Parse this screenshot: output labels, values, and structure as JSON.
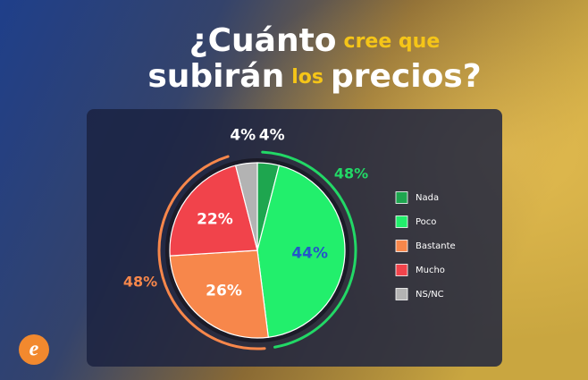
{
  "chart_data": {
    "type": "pie",
    "title_lines": [
      [
        {
          "text": "¿Cuánto",
          "highlight": false
        },
        {
          "text": "cree que",
          "highlight": true
        }
      ],
      [
        {
          "text": "subirán",
          "highlight": false
        },
        {
          "text": "los",
          "highlight": true
        },
        {
          "text": "precios?",
          "highlight": false
        }
      ]
    ],
    "categories": [
      "Nada",
      "Poco",
      "Bastante",
      "Mucho",
      "NS/NC"
    ],
    "values": [
      4,
      44,
      26,
      22,
      4
    ],
    "value_labels": [
      "4%",
      "44%",
      "26%",
      "22%",
      "4%"
    ],
    "colors": [
      "#1ea64f",
      "#22ef6c",
      "#f7874b",
      "#f1434b",
      "#b3b3b3"
    ],
    "label_colors": [
      "#ffffff",
      "#2456c9",
      "#ffffff",
      "#ffffff",
      "#ffffff"
    ],
    "annotations": [
      {
        "text": "48%",
        "value": 48,
        "color": "#22d866"
      },
      {
        "text": "48%",
        "value": 48,
        "color": "#f7874b"
      }
    ],
    "legend": "right"
  }
}
